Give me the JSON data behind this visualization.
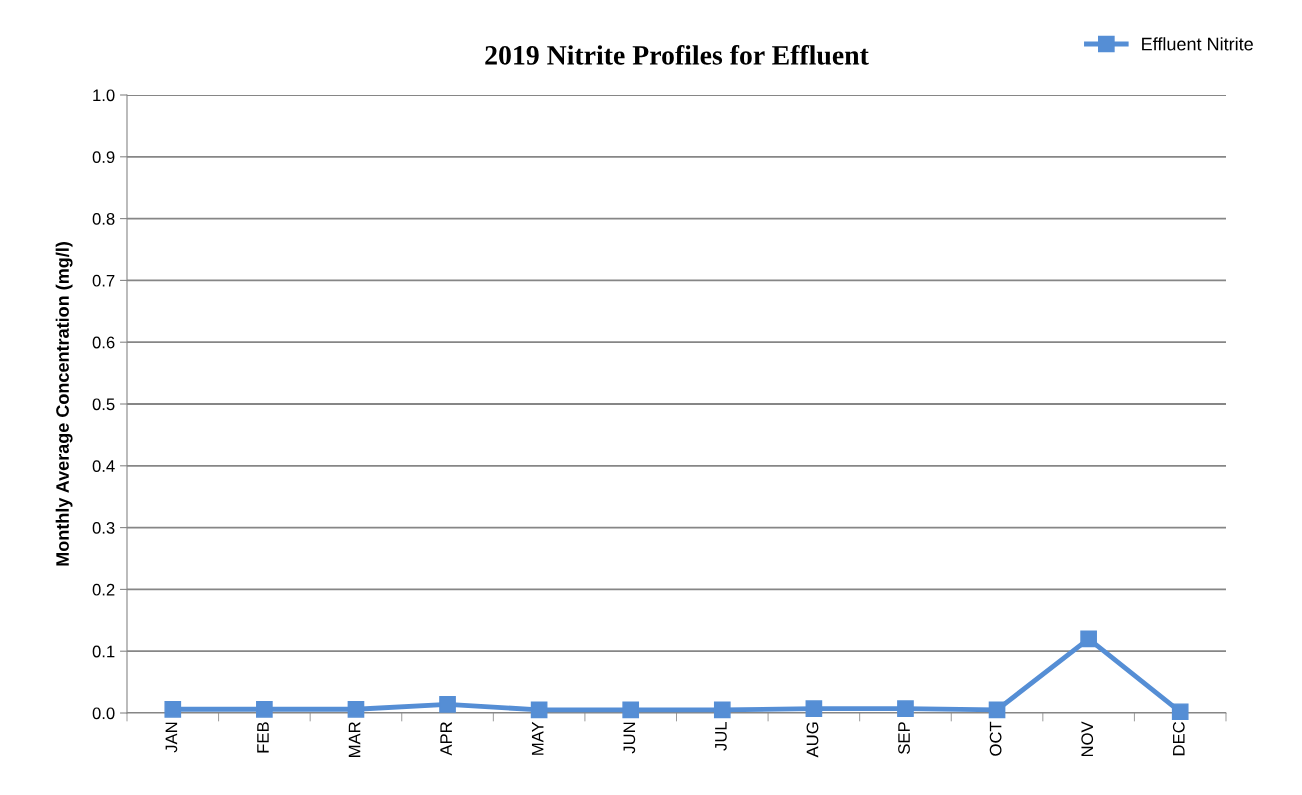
{
  "chart_data": {
    "type": "line",
    "title": "2019 Nitrite Profiles for Effluent",
    "ylabel": "Monthly Average Concentration (mg/l)",
    "categories": [
      "JAN",
      "FEB",
      "MAR",
      "APR",
      "MAY",
      "JUN",
      "JUL",
      "AUG",
      "SEP",
      "OCT",
      "NOV",
      "DEC"
    ],
    "series": [
      {
        "name": "Effluent Nitrite",
        "color": "#558ed5",
        "values": [
          0.006,
          0.006,
          0.006,
          0.014,
          0.005,
          0.005,
          0.005,
          0.007,
          0.007,
          0.005,
          0.12,
          0.002
        ]
      }
    ],
    "ylim": [
      0,
      1
    ],
    "yticks": [
      {
        "value": 0,
        "label": "0.0"
      },
      {
        "value": 0.1,
        "label": "0.1"
      },
      {
        "value": 0.2,
        "label": "0.2"
      },
      {
        "value": 0.3,
        "label": "0.3"
      },
      {
        "value": 0.4,
        "label": "0.4"
      },
      {
        "value": 0.5,
        "label": "0.5"
      },
      {
        "value": 0.6,
        "label": "0.6"
      },
      {
        "value": 0.7,
        "label": "0.7"
      },
      {
        "value": 0.8,
        "label": "0.8"
      },
      {
        "value": 0.9,
        "label": "0.9"
      },
      {
        "value": 1,
        "label": "1.0"
      }
    ],
    "grid": "y",
    "legend": "top right",
    "marker": "square",
    "line_style": "solid"
  }
}
